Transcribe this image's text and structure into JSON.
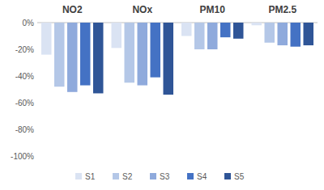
{
  "chart_data": {
    "type": "bar",
    "categories": [
      "NO2",
      "NOx",
      "PM10",
      "PM2.5"
    ],
    "series": [
      {
        "name": "S1",
        "color": "#dae3f3",
        "values": [
          -24,
          -19,
          -10,
          -2
        ]
      },
      {
        "name": "S2",
        "color": "#b4c7e7",
        "values": [
          -48,
          -45,
          -20,
          -15
        ]
      },
      {
        "name": "S3",
        "color": "#8faadc",
        "values": [
          -52,
          -47,
          -20,
          -17
        ]
      },
      {
        "name": "S4",
        "color": "#4472c4",
        "values": [
          -47,
          -41,
          -11,
          -18
        ]
      },
      {
        "name": "S5",
        "color": "#2f5597",
        "values": [
          -53,
          -54,
          -12,
          -17
        ]
      }
    ],
    "ylim": [
      -100,
      0
    ],
    "yticks": [
      {
        "value": -100,
        "label": "-100%"
      },
      {
        "value": -80,
        "label": "-80%"
      },
      {
        "value": -60,
        "label": "-60%"
      },
      {
        "value": -40,
        "label": "-40%"
      },
      {
        "value": -20,
        "label": "-20%"
      },
      {
        "value": 0,
        "label": "0%"
      }
    ],
    "grid": false,
    "legend": "bottom"
  }
}
